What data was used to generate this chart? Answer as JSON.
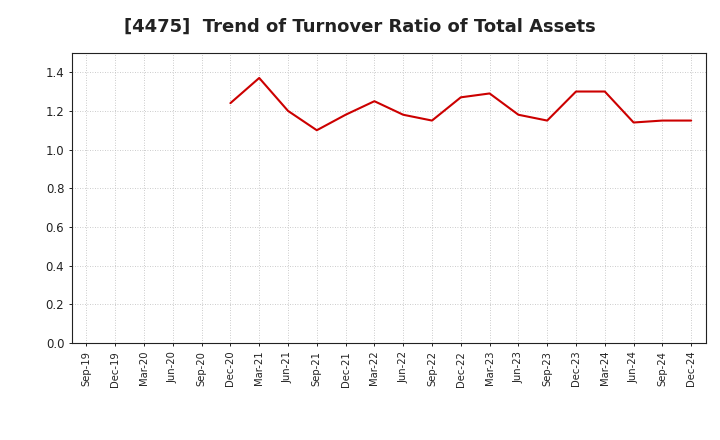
{
  "title": "[4475]  Trend of Turnover Ratio of Total Assets",
  "line_color": "#cc0000",
  "line_width": 1.5,
  "background_color": "#ffffff",
  "grid_color": "#bbbbbb",
  "ylim": [
    0.0,
    1.5
  ],
  "yticks": [
    0.0,
    0.2,
    0.4,
    0.6,
    0.8,
    1.0,
    1.2,
    1.4
  ],
  "x_labels": [
    "Sep-19",
    "Dec-19",
    "Mar-20",
    "Jun-20",
    "Sep-20",
    "Dec-20",
    "Mar-21",
    "Jun-21",
    "Sep-21",
    "Dec-21",
    "Mar-22",
    "Jun-22",
    "Sep-22",
    "Dec-22",
    "Mar-23",
    "Jun-23",
    "Sep-23",
    "Dec-23",
    "Mar-24",
    "Jun-24",
    "Sep-24",
    "Dec-24"
  ],
  "values": [
    null,
    null,
    null,
    null,
    null,
    1.24,
    1.37,
    1.2,
    1.1,
    1.18,
    1.25,
    1.18,
    1.15,
    1.27,
    1.29,
    1.18,
    1.15,
    1.3,
    1.3,
    1.14,
    1.15,
    1.15
  ],
  "title_fontsize": 13,
  "title_color": "#222222",
  "tick_color": "#222222",
  "spine_color": "#222222"
}
